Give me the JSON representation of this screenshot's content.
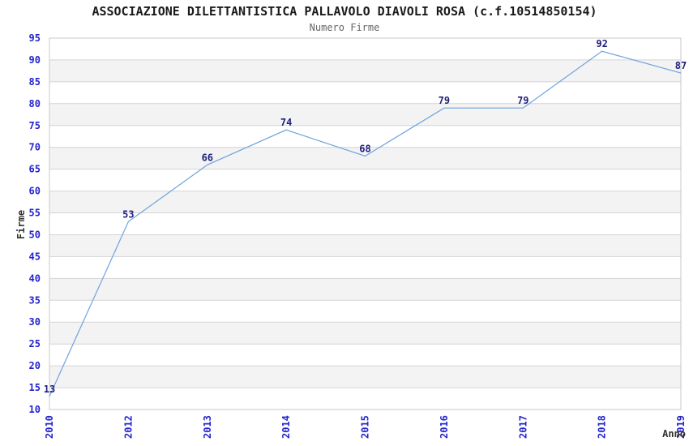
{
  "chart_data": {
    "type": "line",
    "title": "ASSOCIAZIONE DILETTANTISTICA PALLAVOLO DIAVOLI ROSA (c.f.10514850154)",
    "subtitle": "Numero Firme",
    "xlabel": "Anno",
    "ylabel": "Firme",
    "categories": [
      "2010",
      "2012",
      "2013",
      "2014",
      "2015",
      "2016",
      "2017",
      "2018",
      "2019"
    ],
    "values": [
      13,
      53,
      66,
      74,
      68,
      79,
      79,
      92,
      87
    ],
    "ylim": [
      10,
      95
    ],
    "ytick_step": 5,
    "grid": true,
    "legend_position": "none",
    "colors": {
      "line": "#6ea3dd",
      "tick_label": "#2424cf",
      "value_label": "#1f1f7e",
      "plot_background": "#ffffff",
      "band_fill": "#f3f3f3",
      "gridline": "#d4d4d4",
      "plot_border": "#c9c9c9",
      "title": "#1a1a1a",
      "subtitle": "#666666",
      "axis_title": "#333333"
    }
  }
}
